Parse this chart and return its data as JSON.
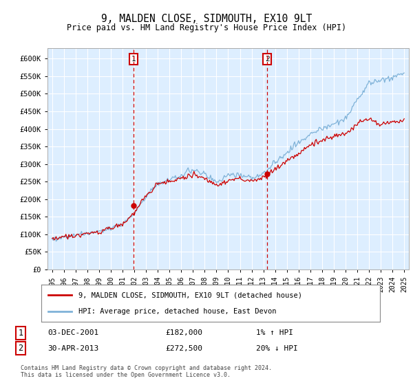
{
  "title": "9, MALDEN CLOSE, SIDMOUTH, EX10 9LT",
  "subtitle": "Price paid vs. HM Land Registry's House Price Index (HPI)",
  "ylabel_ticks": [
    "£0",
    "£50K",
    "£100K",
    "£150K",
    "£200K",
    "£250K",
    "£300K",
    "£350K",
    "£400K",
    "£450K",
    "£500K",
    "£550K",
    "£600K"
  ],
  "ylim": [
    0,
    630000
  ],
  "ytick_values": [
    0,
    50000,
    100000,
    150000,
    200000,
    250000,
    300000,
    350000,
    400000,
    450000,
    500000,
    550000,
    600000
  ],
  "xlim_start": 1994.6,
  "xlim_end": 2025.4,
  "xtick_years": [
    1995,
    1996,
    1997,
    1998,
    1999,
    2000,
    2001,
    2002,
    2003,
    2004,
    2005,
    2006,
    2007,
    2008,
    2009,
    2010,
    2011,
    2012,
    2013,
    2014,
    2015,
    2016,
    2017,
    2018,
    2019,
    2020,
    2021,
    2022,
    2023,
    2024,
    2025
  ],
  "hpi_color": "#7fb2d8",
  "price_color": "#cc0000",
  "dashed_line_color": "#cc0000",
  "plot_bg_color": "#ddeeff",
  "grid_color": "#ffffff",
  "legend_label_red": "9, MALDEN CLOSE, SIDMOUTH, EX10 9LT (detached house)",
  "legend_label_blue": "HPI: Average price, detached house, East Devon",
  "sale1_date": "03-DEC-2001",
  "sale1_price": "£182,000",
  "sale1_hpi": "1% ↑ HPI",
  "sale1_year": 2001.92,
  "sale1_value": 182000,
  "sale2_date": "30-APR-2013",
  "sale2_price": "£272,500",
  "sale2_hpi": "20% ↓ HPI",
  "sale2_year": 2013.33,
  "sale2_value": 272500,
  "footer": "Contains HM Land Registry data © Crown copyright and database right 2024.\nThis data is licensed under the Open Government Licence v3.0.",
  "hpi_key_points": [
    [
      1995.0,
      87000
    ],
    [
      1996.0,
      91000
    ],
    [
      1997.0,
      98000
    ],
    [
      1998.0,
      102000
    ],
    [
      1999.0,
      108000
    ],
    [
      2000.0,
      118000
    ],
    [
      2001.0,
      130000
    ],
    [
      2002.0,
      160000
    ],
    [
      2003.0,
      210000
    ],
    [
      2004.0,
      245000
    ],
    [
      2005.0,
      255000
    ],
    [
      2006.0,
      268000
    ],
    [
      2007.0,
      285000
    ],
    [
      2008.0,
      272000
    ],
    [
      2009.0,
      248000
    ],
    [
      2010.0,
      268000
    ],
    [
      2011.0,
      268000
    ],
    [
      2012.0,
      262000
    ],
    [
      2013.0,
      272000
    ],
    [
      2014.0,
      305000
    ],
    [
      2015.0,
      335000
    ],
    [
      2016.0,
      360000
    ],
    [
      2017.0,
      385000
    ],
    [
      2018.0,
      400000
    ],
    [
      2019.0,
      415000
    ],
    [
      2020.0,
      430000
    ],
    [
      2021.0,
      480000
    ],
    [
      2022.0,
      530000
    ],
    [
      2023.0,
      540000
    ],
    [
      2024.0,
      545000
    ],
    [
      2025.0,
      560000
    ]
  ],
  "red_key_points": [
    [
      1995.0,
      87000
    ],
    [
      1996.0,
      91000
    ],
    [
      1997.0,
      98000
    ],
    [
      1998.0,
      102000
    ],
    [
      1999.0,
      108000
    ],
    [
      2000.0,
      118000
    ],
    [
      2001.0,
      130000
    ],
    [
      2002.0,
      160000
    ],
    [
      2003.0,
      210000
    ],
    [
      2004.0,
      245000
    ],
    [
      2005.0,
      248000
    ],
    [
      2006.0,
      260000
    ],
    [
      2007.0,
      272000
    ],
    [
      2008.0,
      258000
    ],
    [
      2009.0,
      238000
    ],
    [
      2010.0,
      255000
    ],
    [
      2011.0,
      258000
    ],
    [
      2012.0,
      252000
    ],
    [
      2013.0,
      262000
    ],
    [
      2014.0,
      285000
    ],
    [
      2015.0,
      310000
    ],
    [
      2016.0,
      330000
    ],
    [
      2017.0,
      355000
    ],
    [
      2018.0,
      368000
    ],
    [
      2019.0,
      378000
    ],
    [
      2020.0,
      388000
    ],
    [
      2021.0,
      415000
    ],
    [
      2022.0,
      428000
    ],
    [
      2023.0,
      415000
    ],
    [
      2024.0,
      420000
    ],
    [
      2025.0,
      425000
    ]
  ]
}
